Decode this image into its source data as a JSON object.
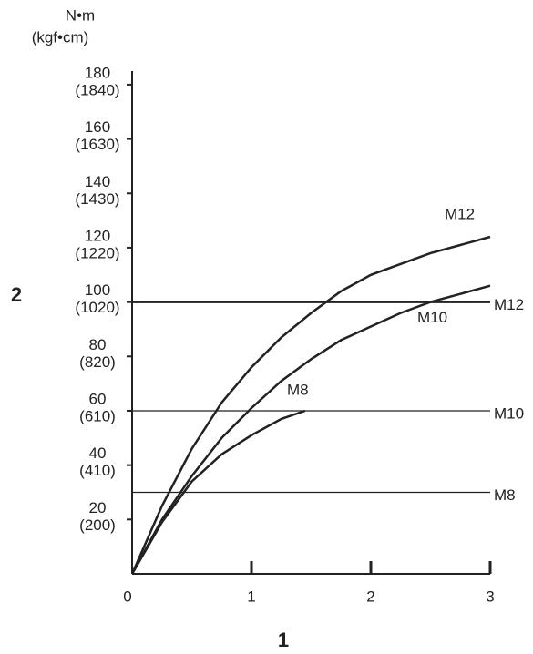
{
  "chart_data": {
    "type": "line",
    "y_unit_label": "N•m",
    "y_unit_sublabel": "(kgf•cm)",
    "y_axis_label": "2",
    "x_axis_label": "1",
    "xlim": [
      0,
      3
    ],
    "xticks": [
      0,
      1,
      2,
      3
    ],
    "ylim": [
      0,
      185
    ],
    "yticks": [
      20,
      40,
      60,
      80,
      100,
      120,
      140,
      160,
      180
    ],
    "ytick_sublabels": [
      "(200)",
      "(410)",
      "(610)",
      "(820)",
      "(1020)",
      "(1220)",
      "(1430)",
      "(1630)",
      "(1840)"
    ],
    "color": "#222222",
    "series": [
      {
        "name": "M12",
        "x": [
          0,
          0.25,
          0.5,
          0.75,
          1,
          1.25,
          1.5,
          1.75,
          2,
          2.25,
          2.5,
          2.75,
          3
        ],
        "values": [
          0,
          25,
          46,
          63,
          76,
          87,
          96,
          104,
          110,
          114,
          118,
          121,
          124
        ]
      },
      {
        "name": "M10",
        "x": [
          0,
          0.25,
          0.5,
          0.75,
          1,
          1.25,
          1.5,
          1.75,
          2,
          2.25,
          2.5,
          2.75,
          3
        ],
        "values": [
          0,
          20,
          36,
          50,
          61,
          71,
          79,
          86,
          91,
          96,
          100,
          103,
          106
        ]
      },
      {
        "name": "M8",
        "x": [
          0,
          0.25,
          0.5,
          0.75,
          1,
          1.25,
          1.45
        ],
        "values": [
          0,
          19,
          34,
          44,
          51,
          57,
          60
        ]
      }
    ],
    "reference_lines": [
      {
        "name": "M12",
        "value": 100
      },
      {
        "name": "M10",
        "value": 60
      },
      {
        "name": "M8",
        "value": 30
      }
    ]
  }
}
